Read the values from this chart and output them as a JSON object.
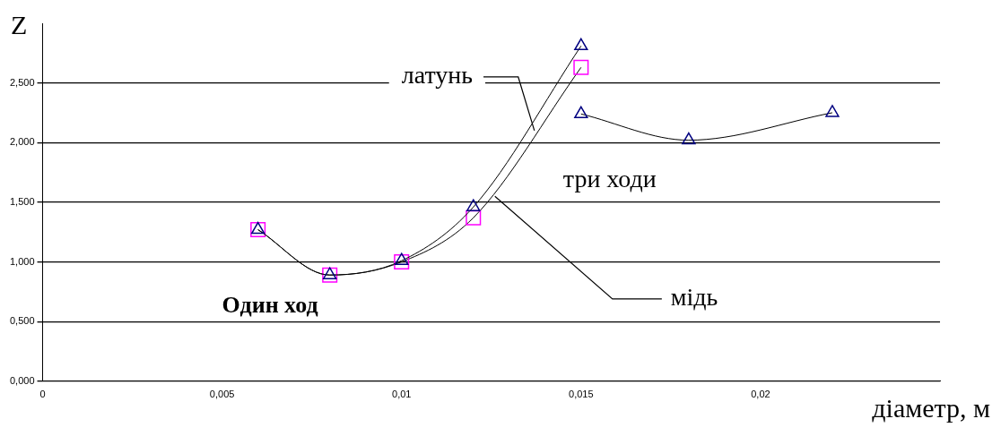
{
  "chart_data": {
    "type": "line",
    "xlabel": "діаметр, м",
    "ylabel": "Z",
    "xlim": [
      0,
      0.025
    ],
    "xticks": [
      0,
      {
        "value": 0.005,
        "label": "0,005"
      },
      {
        "value": 0.01,
        "label": "0,01"
      },
      {
        "value": 0.015,
        "label": "0,015"
      },
      {
        "value": 0.02,
        "label": "0,02"
      }
    ],
    "ylim": [
      0,
      3
    ],
    "yticks": [
      {
        "value": 0,
        "label": "0,000"
      },
      {
        "value": 0.5,
        "label": "0,500"
      },
      {
        "value": 1,
        "label": "1,000"
      },
      {
        "value": 1.5,
        "label": "1,500"
      },
      {
        "value": 2,
        "label": "2,000"
      },
      {
        "value": 2.5,
        "label": "2,500"
      }
    ],
    "grid": "y",
    "legend": false,
    "series": [
      {
        "name": "латунь",
        "color": "#000080",
        "marker": "triangle",
        "x": [
          0.006,
          0.008,
          0.01,
          0.012,
          0.015
        ],
        "values": [
          1.27,
          0.89,
          1.01,
          1.46,
          2.81
        ]
      },
      {
        "name": "мідь",
        "color": "#ff00ff",
        "marker": "square",
        "x": [
          0.006,
          0.008,
          0.01,
          0.012,
          0.015
        ],
        "values": [
          1.27,
          0.89,
          1.0,
          1.37,
          2.63
        ]
      },
      {
        "name": "три ходи",
        "color": "#000080",
        "marker": "triangle",
        "x": [
          0.015,
          0.018,
          0.022
        ],
        "values": [
          2.24,
          2.02,
          2.25
        ]
      }
    ],
    "annotations": [
      "Один ход"
    ]
  }
}
